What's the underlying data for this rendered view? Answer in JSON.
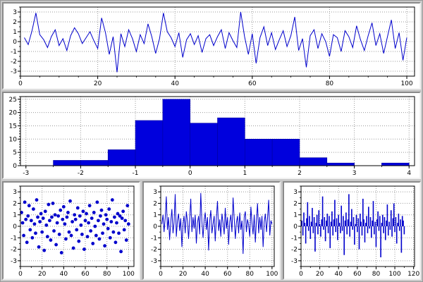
{
  "window": {
    "background_color": "#c9c9c9",
    "bevel_dark": "#8a8a8a",
    "bevel_light": "#f2f2f2",
    "plot_background": "#ffffff",
    "axis_color": "#000000",
    "grid_color": "#9a9a9a",
    "series_color": "#0000cc"
  },
  "chart_data": [
    {
      "id": "top-noise-line",
      "type": "line",
      "title": "",
      "xlabel": "",
      "ylabel": "",
      "xlim": [
        0,
        102
      ],
      "ylim": [
        -3.5,
        3.5
      ],
      "xticks": [
        0,
        20,
        40,
        60,
        80,
        100
      ],
      "yticks": [
        -3,
        -2,
        -1,
        0,
        1,
        2,
        3
      ],
      "xminor": 5,
      "yminor": 0.5,
      "grid": true,
      "color": "#0000cc",
      "values": [
        0.4,
        -0.3,
        1.1,
        2.9,
        0.7,
        0.2,
        -0.6,
        0.5,
        1.2,
        -0.4,
        0.3,
        -0.9,
        0.6,
        1.4,
        0.8,
        -0.2,
        0.4,
        1.0,
        0.1,
        -0.7,
        2.4,
        0.9,
        -1.3,
        0.5,
        -3.1,
        0.8,
        -0.5,
        1.2,
        0.3,
        -1.0,
        0.7,
        -0.2,
        1.8,
        0.5,
        -1.2,
        0.3,
        2.9,
        1.0,
        0.4,
        -0.5,
        0.9,
        -1.6,
        0.2,
        0.8,
        -0.3,
        0.6,
        -1.1,
        0.3,
        0.7,
        -0.4,
        0.5,
        1.2,
        -0.7,
        0.9,
        0.1,
        -0.6,
        3.0,
        0.5,
        -1.3,
        0.8,
        -2.2,
        0.4,
        1.5,
        -0.4,
        0.9,
        -0.8,
        0.2,
        1.1,
        -0.5,
        0.6,
        2.5,
        -0.9,
        0.3,
        -2.6,
        0.6,
        1.2,
        -0.7,
        0.8,
        0.0,
        -1.5,
        0.7,
        0.4,
        -1.0,
        1.1,
        0.5,
        -0.6,
        1.6,
        0.2,
        -0.9,
        0.6,
        1.9,
        -0.4,
        0.8,
        -1.2,
        0.5,
        2.2,
        -0.7,
        0.9,
        -1.9,
        0.4
      ]
    },
    {
      "id": "histogram",
      "type": "histogram",
      "title": "",
      "xlabel": "",
      "ylabel": "",
      "xlim": [
        -3.1,
        4.1
      ],
      "ylim": [
        0,
        26
      ],
      "xticks": [
        -3,
        -2,
        -1,
        0,
        1,
        2,
        3,
        4
      ],
      "yticks": [
        0,
        5,
        10,
        15,
        20,
        25
      ],
      "xminor": 0.5,
      "yminor": 1,
      "grid": true,
      "color": "#0000dd",
      "bin_edges": [
        -3,
        -2.5,
        -2,
        -1.5,
        -1,
        -0.5,
        0,
        0.5,
        1,
        1.5,
        2,
        2.5,
        3,
        3.5,
        4
      ],
      "counts": [
        0,
        2,
        2,
        6,
        17,
        25,
        16,
        18,
        10,
        10,
        3,
        1,
        0,
        1
      ]
    },
    {
      "id": "bottom-left-scatter",
      "type": "scatter",
      "title": "",
      "xlabel": "",
      "ylabel": "",
      "xlim": [
        0,
        105
      ],
      "ylim": [
        -3.5,
        3.5
      ],
      "xticks": [
        0,
        20,
        40,
        60,
        80,
        100
      ],
      "yticks": [
        -3,
        -2,
        -1,
        0,
        1,
        2,
        3
      ],
      "xminor": 10,
      "yminor": 0.5,
      "grid": true,
      "color": "#0000cc",
      "marker_radius": 2.4,
      "values": [
        1.2,
        0.3,
        -0.8,
        2.1,
        0.6,
        -1.4,
        0.9,
        1.8,
        -0.3,
        0.5,
        -1.0,
        1.5,
        0.2,
        -0.6,
        2.3,
        0.8,
        -1.8,
        0.4,
        1.1,
        -0.5,
        0.7,
        -2.1,
        1.3,
        0.1,
        -0.9,
        1.9,
        0.5,
        -1.2,
        0.8,
        2.0,
        -0.4,
        1.0,
        -1.6,
        0.3,
        0.9,
        -0.7,
        1.4,
        -2.3,
        0.6,
        1.7,
        0.2,
        -1.1,
        0.8,
        1.2,
        -0.5,
        2.2,
        -0.8,
        0.4,
        -1.9,
        1.0,
        0.6,
        -0.3,
        1.6,
        -1.3,
        0.9,
        0.1,
        -0.7,
        1.3,
        -2.0,
        0.5,
        1.1,
        -0.9,
        0.3,
        1.8,
        -0.4,
        0.7,
        -1.5,
        1.2,
        0.0,
        -0.8,
        2.1,
        0.5,
        -1.1,
        0.9,
        1.4,
        -0.6,
        0.2,
        -1.7,
        1.0,
        0.6,
        -0.2,
        1.5,
        -1.0,
        0.4,
        2.3,
        -0.5,
        0.8,
        -1.4,
        0.3,
        1.1,
        -0.6,
        0.9,
        -2.2,
        0.7,
        1.3,
        -0.3,
        0.5,
        -1.2,
        1.8,
        0.2
      ]
    },
    {
      "id": "bottom-middle-line",
      "type": "line",
      "title": "",
      "xlabel": "",
      "ylabel": "",
      "xlim": [
        0,
        102
      ],
      "ylim": [
        -3.5,
        3.5
      ],
      "xticks": [
        0,
        20,
        40,
        60,
        80,
        100
      ],
      "yticks": [
        -3,
        -2,
        -1,
        0,
        1,
        2,
        3
      ],
      "xminor": 10,
      "yminor": 0.5,
      "grid": true,
      "color": "#0000cc",
      "values": [
        0.2,
        1.0,
        -0.5,
        0.7,
        2.6,
        -0.3,
        0.8,
        -1.2,
        0.4,
        1.5,
        -0.6,
        0.3,
        2.8,
        -0.9,
        0.5,
        1.1,
        -0.4,
        0.7,
        -1.8,
        0.2,
        0.9,
        -0.6,
        1.3,
        0.4,
        -1.1,
        0.6,
        2.4,
        -0.5,
        0.8,
        -0.2,
        1.0,
        -1.5,
        0.3,
        0.9,
        -0.7,
        2.9,
        0.4,
        -1.0,
        0.6,
        1.2,
        -0.3,
        0.8,
        -2.1,
        0.5,
        1.4,
        -0.6,
        0.2,
        0.9,
        -1.3,
        0.7,
        2.2,
        -0.4,
        0.6,
        -0.9,
        1.1,
        0.3,
        -0.7,
        1.6,
        -0.2,
        0.8,
        -1.6,
        0.4,
        1.0,
        -0.5,
        2.5,
        0.7,
        -1.1,
        0.3,
        0.9,
        -0.6,
        1.2,
        -0.3,
        0.5,
        -2.4,
        0.8,
        1.3,
        -0.5,
        0.6,
        0.1,
        -0.9,
        1.7,
        0.3,
        -0.7,
        1.0,
        -1.4,
        0.5,
        2.0,
        -0.6,
        0.8,
        -0.3,
        0.9,
        -1.8,
        0.4,
        1.1,
        -0.5,
        0.7,
        2.3,
        -0.8,
        0.5,
        0.2
      ]
    },
    {
      "id": "bottom-right-stem",
      "type": "stem",
      "title": "",
      "xlabel": "",
      "ylabel": "",
      "xlim": [
        0,
        121
      ],
      "ylim": [
        -3.5,
        3.5
      ],
      "xticks": [
        0,
        20,
        40,
        60,
        80,
        100,
        120
      ],
      "yticks": [
        -3,
        -2,
        -1,
        0,
        1,
        2,
        3
      ],
      "xminor": 10,
      "yminor": 0.5,
      "grid": true,
      "color": "#0000cc",
      "values": [
        0.5,
        -0.8,
        1.2,
        0.3,
        -1.5,
        0.7,
        2.1,
        -0.4,
        0.9,
        -1.1,
        0.4,
        1.6,
        -0.6,
        0.8,
        -2.2,
        0.3,
        1.0,
        -0.7,
        1.4,
        0.2,
        -0.9,
        0.6,
        2.6,
        -0.3,
        0.8,
        -1.3,
        0.5,
        1.1,
        -0.6,
        0.9,
        -1.9,
        0.4,
        1.3,
        -0.8,
        0.6,
        2.3,
        -0.5,
        0.7,
        -1.2,
        1.0,
        0.3,
        -0.6,
        1.8,
        -0.4,
        0.9,
        -2.5,
        0.5,
        1.2,
        -0.7,
        0.6,
        2.8,
        -0.9,
        0.4,
        1.5,
        -0.3,
        0.8,
        -1.6,
        0.2,
        1.0,
        -0.5,
        0.7,
        -2.0,
        1.1,
        0.4,
        -0.8,
        2.4,
        0.6,
        -1.4,
        0.3,
        0.9,
        -0.6,
        1.7,
        -0.2,
        0.8,
        -1.0,
        0.5,
        2.2,
        -0.7,
        0.4,
        -1.8,
        0.6,
        1.3,
        -0.4,
        0.9,
        -2.7,
        0.3,
        1.0,
        -0.6,
        0.8,
        -1.2,
        0.5,
        1.9,
        -0.8,
        0.4,
        -0.3,
        1.4,
        -0.9,
        0.7,
        2.0,
        -0.5,
        0.8,
        -1.5,
        0.3,
        1.1,
        -0.4,
        0.6,
        -2.3,
        0.9,
        0.5,
        -0.7
      ]
    }
  ]
}
